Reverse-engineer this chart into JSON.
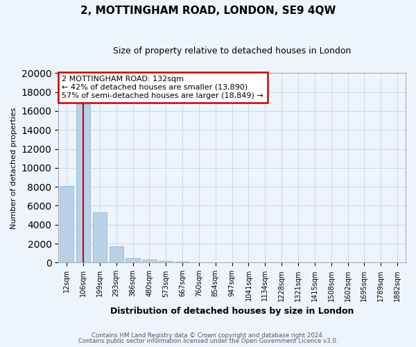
{
  "title": "2, MOTTINGHAM ROAD, LONDON, SE9 4QW",
  "subtitle": "Size of property relative to detached houses in London",
  "xlabel": "Distribution of detached houses by size in London",
  "ylabel": "Number of detached properties",
  "annotation_title": "2 MOTTINGHAM ROAD: 132sqm",
  "annotation_line1": "← 42% of detached houses are smaller (13,890)",
  "annotation_line2": "57% of semi-detached houses are larger (18,849) →",
  "footer1": "Contains HM Land Registry data © Crown copyright and database right 2024.",
  "footer2": "Contains public sector information licensed under the Open Government Licence v3.0.",
  "bar_color": "#b8d0e8",
  "bar_edge_color": "#8ab0cc",
  "grid_color": "#c8d8ea",
  "annotation_box_color": "#cc0000",
  "marker_line_color": "#cc0000",
  "background_color": "#eef4fb",
  "categories": [
    "12sqm",
    "106sqm",
    "199sqm",
    "293sqm",
    "386sqm",
    "480sqm",
    "573sqm",
    "667sqm",
    "760sqm",
    "854sqm",
    "947sqm",
    "1041sqm",
    "1134sqm",
    "1228sqm",
    "1321sqm",
    "1415sqm",
    "1508sqm",
    "1602sqm",
    "1695sqm",
    "1789sqm",
    "1882sqm"
  ],
  "values": [
    8050,
    16700,
    5300,
    1700,
    480,
    290,
    180,
    120,
    60,
    20,
    5,
    2,
    1,
    0,
    0,
    0,
    0,
    0,
    0,
    0,
    0
  ],
  "ylim": [
    0,
    20000
  ],
  "yticks": [
    0,
    2000,
    4000,
    6000,
    8000,
    10000,
    12000,
    14000,
    16000,
    18000,
    20000
  ],
  "marker_bin": 1,
  "property_size": 132
}
